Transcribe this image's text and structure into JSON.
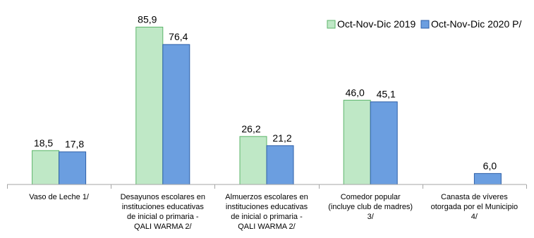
{
  "chart_data": {
    "type": "bar",
    "categories": [
      [
        "Vaso de Leche 1/"
      ],
      [
        "Desayunos escolares en",
        "instituciones educativas",
        "de inicial o primaria -",
        "QALI WARMA 2/"
      ],
      [
        "Almuerzos escolares en",
        "instituciones educativas",
        "de inicial o primaria -",
        "QALI WARMA 2/"
      ],
      [
        "Comedor popular",
        "(incluye club de madres)",
        "3/"
      ],
      [
        "Canasta de víveres",
        "otorgada por el Municipio",
        "4/"
      ]
    ],
    "series": [
      {
        "name": "Oct-Nov-Dic 2019",
        "color": "#bfe8c6",
        "stroke": "#5cb56a",
        "values": [
          18.5,
          85.9,
          26.2,
          46.0,
          null
        ],
        "labels": [
          "18,5",
          "85,9",
          "26,2",
          "46,0",
          ""
        ]
      },
      {
        "name": "Oct-Nov-Dic 2020 P/",
        "color": "#6b9ee0",
        "stroke": "#2d5fa8",
        "values": [
          17.8,
          76.4,
          21.2,
          45.1,
          6.0
        ],
        "labels": [
          "17,8",
          "76,4",
          "21,2",
          "45,1",
          "6,0"
        ]
      }
    ],
    "ylim": [
      0,
      100
    ],
    "legend_position": "top-right"
  }
}
